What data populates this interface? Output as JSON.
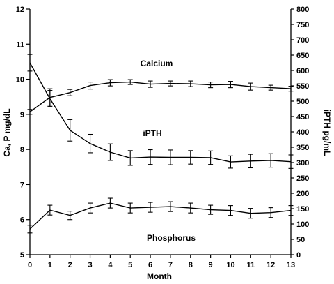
{
  "chart_data": {
    "type": "line",
    "xlabel": "Month",
    "ylabel_left": "Ca, P mg/dL",
    "ylabel_right": "iPTH pg/mL",
    "x": [
      0,
      1,
      2,
      3,
      4,
      5,
      6,
      7,
      8,
      9,
      10,
      11,
      12,
      13
    ],
    "xlim": [
      0,
      13
    ],
    "ylim_left": [
      5,
      12
    ],
    "ylim_right": [
      0,
      800
    ],
    "yticks_left": [
      5,
      6,
      7,
      8,
      9,
      10,
      11,
      12
    ],
    "yticks_right": [
      0,
      50,
      100,
      150,
      200,
      250,
      300,
      350,
      400,
      450,
      500,
      550,
      600,
      650,
      700,
      750,
      800
    ],
    "grid": false,
    "series": [
      {
        "name": "Calcium",
        "axis": "left",
        "values": [
          9.07,
          9.48,
          9.62,
          9.82,
          9.9,
          9.92,
          9.86,
          9.88,
          9.87,
          9.84,
          9.85,
          9.79,
          9.76,
          9.73
        ],
        "errors": [
          0.07,
          0.25,
          0.09,
          0.1,
          0.09,
          0.07,
          0.09,
          0.07,
          0.08,
          0.08,
          0.09,
          0.1,
          0.07,
          0.07
        ]
      },
      {
        "name": "iPTH",
        "axis": "right",
        "values": [
          625,
          508,
          405,
          362,
          334,
          315,
          318,
          317,
          317,
          316,
          302,
          305,
          307,
          303
        ],
        "errors": [
          27,
          27,
          35,
          30,
          27,
          24,
          24,
          24,
          22,
          22,
          20,
          22,
          22,
          22
        ]
      },
      {
        "name": "Phosphorus",
        "axis": "left",
        "values": [
          5.73,
          6.27,
          6.12,
          6.33,
          6.47,
          6.33,
          6.35,
          6.37,
          6.33,
          6.28,
          6.26,
          6.18,
          6.2,
          6.26
        ],
        "errors": [
          0.11,
          0.14,
          0.12,
          0.14,
          0.14,
          0.14,
          0.14,
          0.14,
          0.14,
          0.13,
          0.14,
          0.14,
          0.14,
          0.14
        ]
      }
    ],
    "annotations": {
      "calcium": "Calcium",
      "ipth": "iPTH",
      "phosphorus": "Phosphorus"
    }
  }
}
